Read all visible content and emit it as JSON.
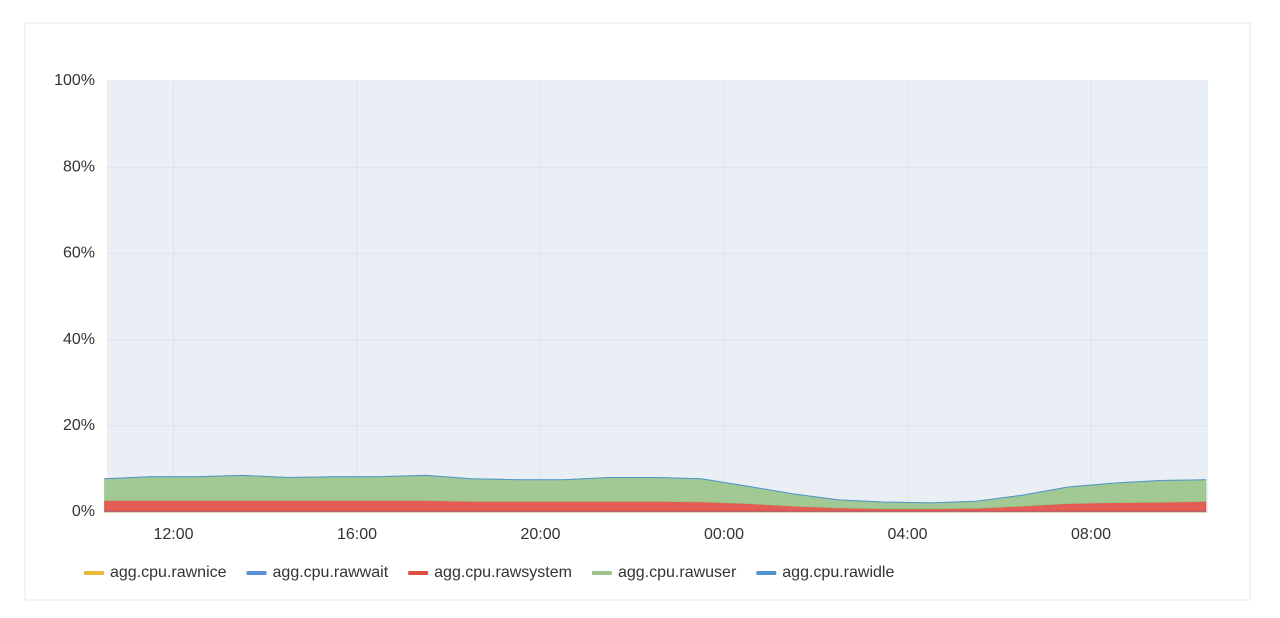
{
  "chart_data": {
    "type": "stacked-area",
    "x": [
      10.5,
      11.5,
      12.5,
      13.5,
      14.5,
      15.5,
      16.5,
      17.5,
      18.5,
      19.5,
      20.5,
      21.5,
      22.5,
      23.5,
      24.5,
      25.5,
      26.5,
      27.5,
      28.5,
      29.5,
      30.5,
      31.5,
      32.5,
      33.5,
      34.5
    ],
    "xlim": [
      10.55,
      34.55
    ],
    "xticks": [
      {
        "value": 12,
        "label": "12:00"
      },
      {
        "value": 16,
        "label": "16:00"
      },
      {
        "value": 20,
        "label": "20:00"
      },
      {
        "value": 24,
        "label": "00:00"
      },
      {
        "value": 28,
        "label": "04:00"
      },
      {
        "value": 32,
        "label": "08:00"
      }
    ],
    "ylim": [
      0,
      100
    ],
    "yticks": [
      {
        "value": 0,
        "label": "0%"
      },
      {
        "value": 20,
        "label": "20%"
      },
      {
        "value": 40,
        "label": "40%"
      },
      {
        "value": 60,
        "label": "60%"
      },
      {
        "value": 80,
        "label": "80%"
      },
      {
        "value": 100,
        "label": "100%"
      }
    ],
    "grid": true,
    "series": [
      {
        "name": "agg.cpu.rawnice",
        "color": "#eab839",
        "values": [
          0.1,
          0.1,
          0.1,
          0.1,
          0.1,
          0.1,
          0.1,
          0.1,
          0.1,
          0.1,
          0.1,
          0.1,
          0.1,
          0.1,
          0.1,
          0.1,
          0.1,
          0.1,
          0.1,
          0.1,
          0.1,
          0.1,
          0.1,
          0.1,
          0.1
        ]
      },
      {
        "name": "agg.cpu.rawwait",
        "color": "#5b8fd6",
        "values": [
          0.1,
          0.1,
          0.1,
          0.1,
          0.1,
          0.1,
          0.1,
          0.1,
          0.1,
          0.1,
          0.1,
          0.1,
          0.1,
          0.1,
          0.1,
          0.1,
          0.1,
          0.1,
          0.1,
          0.1,
          0.1,
          0.1,
          0.1,
          0.1,
          0.1
        ]
      },
      {
        "name": "agg.cpu.rawsystem",
        "color": "#e24d42",
        "values": [
          2.5,
          2.5,
          2.5,
          2.5,
          2.5,
          2.5,
          2.5,
          2.5,
          2.3,
          2.3,
          2.3,
          2.3,
          2.3,
          2.2,
          1.8,
          1.2,
          0.8,
          0.6,
          0.6,
          0.7,
          1.2,
          1.8,
          2.0,
          2.1,
          2.3
        ]
      },
      {
        "name": "agg.cpu.rawuser",
        "color": "#9ac48a",
        "values": [
          5,
          5.5,
          5.5,
          5.8,
          5.3,
          5.5,
          5.5,
          5.8,
          5.2,
          5,
          5,
          5.5,
          5.5,
          5.3,
          4,
          2.8,
          1.8,
          1.5,
          1.3,
          1.6,
          2.5,
          3.8,
          4.5,
          5,
          5
        ]
      },
      {
        "name": "agg.cpu.rawidle",
        "color": "#5195ce",
        "values": [
          0,
          0,
          0,
          0,
          0,
          0,
          0,
          0,
          0,
          0,
          0,
          0,
          0,
          0,
          0,
          0,
          0,
          0,
          0,
          0,
          0,
          0,
          0,
          0,
          0
        ]
      }
    ],
    "legend": "bottom-left"
  }
}
